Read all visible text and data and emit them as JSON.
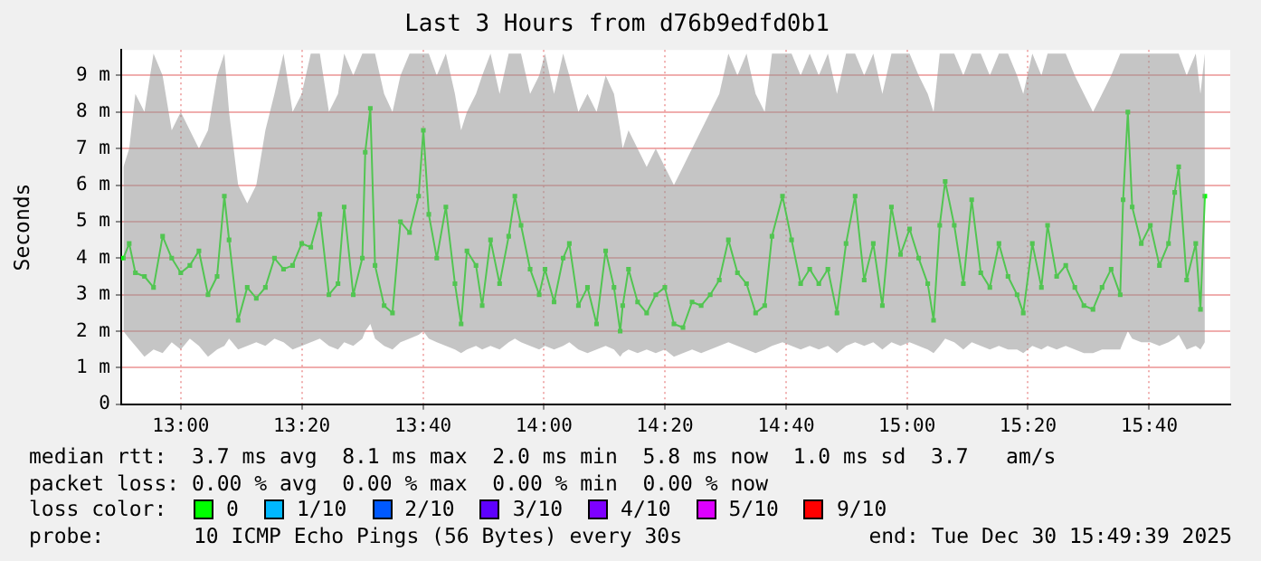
{
  "chart_data": {
    "type": "line",
    "title": "Last 3 Hours from d76b9edfd0b1",
    "ylabel": "Seconds",
    "legend_title": "loss color:",
    "legend": "bottom",
    "grid": true,
    "marker": "square",
    "xlim": [
      12.836,
      15.89
    ],
    "xticks": [
      {
        "value": 13,
        "label": "13:00"
      },
      {
        "value": 13.333,
        "label": "13:20"
      },
      {
        "value": 13.667,
        "label": "13:40"
      },
      {
        "value": 14,
        "label": "14:00"
      },
      {
        "value": 14.333,
        "label": "14:20"
      },
      {
        "value": 14.667,
        "label": "14:40"
      },
      {
        "value": 15,
        "label": "15:00"
      },
      {
        "value": 15.333,
        "label": "15:20"
      },
      {
        "value": 15.667,
        "label": "15:40"
      }
    ],
    "ylim": [
      0,
      9.7
    ],
    "yticks": [
      0,
      {
        "value": 1,
        "label": "1 m"
      },
      {
        "value": 2,
        "label": "2 m"
      },
      {
        "value": 3,
        "label": "3 m"
      },
      {
        "value": 4,
        "label": "4 m"
      },
      {
        "value": 5,
        "label": "5 m"
      },
      {
        "value": 6,
        "label": "6 m"
      },
      {
        "value": 7,
        "label": "7 m"
      },
      {
        "value": 8,
        "label": "8 m"
      },
      {
        "value": 9,
        "label": "9 m"
      }
    ],
    "series": [
      {
        "name": "0",
        "color": "#00ff00",
        "x": [
          12.842,
          12.858,
          12.875,
          12.9,
          12.925,
          12.95,
          12.975,
          13,
          13.025,
          13.05,
          13.075,
          13.1,
          13.12,
          13.133,
          13.158,
          13.183,
          13.208,
          13.233,
          13.258,
          13.283,
          13.308,
          13.333,
          13.358,
          13.383,
          13.408,
          13.433,
          13.45,
          13.475,
          13.5,
          13.508,
          13.522,
          13.535,
          13.56,
          13.583,
          13.605,
          13.63,
          13.655,
          13.668,
          13.683,
          13.705,
          13.73,
          13.755,
          13.772,
          13.788,
          13.813,
          13.83,
          13.853,
          13.878,
          13.903,
          13.92,
          13.937,
          13.962,
          13.987,
          14.003,
          14.028,
          14.053,
          14.07,
          14.095,
          14.12,
          14.145,
          14.17,
          14.193,
          14.21,
          14.217,
          14.233,
          14.258,
          14.283,
          14.308,
          14.333,
          14.358,
          14.383,
          14.408,
          14.433,
          14.458,
          14.483,
          14.508,
          14.533,
          14.558,
          14.583,
          14.608,
          14.628,
          14.657,
          14.682,
          14.707,
          14.732,
          14.757,
          14.782,
          14.807,
          14.832,
          14.857,
          14.882,
          14.907,
          14.932,
          14.957,
          14.982,
          15.007,
          15.032,
          15.057,
          15.073,
          15.09,
          15.105,
          15.13,
          15.155,
          15.178,
          15.203,
          15.228,
          15.253,
          15.278,
          15.303,
          15.32,
          15.345,
          15.37,
          15.387,
          15.412,
          15.437,
          15.462,
          15.487,
          15.512,
          15.537,
          15.562,
          15.587,
          15.595,
          15.608,
          15.62,
          15.645,
          15.67,
          15.695,
          15.72,
          15.737,
          15.748,
          15.77,
          15.795,
          15.808,
          15.82
        ],
        "values": [
          4.0,
          4.4,
          3.6,
          3.5,
          3.2,
          4.6,
          4.0,
          3.6,
          3.8,
          4.2,
          3.0,
          3.5,
          5.7,
          4.5,
          2.3,
          3.2,
          2.9,
          3.2,
          4.0,
          3.7,
          3.8,
          4.4,
          4.3,
          5.2,
          3.0,
          3.3,
          5.4,
          3.0,
          4.0,
          6.9,
          8.1,
          3.8,
          2.7,
          2.5,
          5.0,
          4.7,
          5.7,
          7.5,
          5.2,
          4.0,
          5.4,
          3.3,
          2.2,
          4.2,
          3.8,
          2.7,
          4.5,
          3.3,
          4.6,
          5.7,
          4.9,
          3.7,
          3.0,
          3.7,
          2.8,
          4.0,
          4.4,
          2.7,
          3.2,
          2.2,
          4.2,
          3.2,
          2.0,
          2.7,
          3.7,
          2.8,
          2.5,
          3.0,
          3.2,
          2.2,
          2.1,
          2.8,
          2.7,
          3.0,
          3.4,
          4.5,
          3.6,
          3.3,
          2.5,
          2.7,
          4.6,
          5.7,
          4.5,
          3.3,
          3.7,
          3.3,
          3.7,
          2.5,
          4.4,
          5.7,
          3.4,
          4.4,
          2.7,
          5.4,
          4.1,
          4.8,
          4.0,
          3.3,
          2.3,
          4.9,
          6.1,
          4.9,
          3.3,
          5.6,
          3.6,
          3.2,
          4.4,
          3.5,
          3.0,
          2.5,
          4.4,
          3.2,
          4.9,
          3.5,
          3.8,
          3.2,
          2.7,
          2.6,
          3.2,
          3.7,
          3.0,
          5.6,
          8.0,
          5.4,
          4.4,
          4.9,
          3.8,
          4.4,
          5.8,
          6.5,
          3.4,
          4.4,
          2.6,
          5.7
        ],
        "lower": [
          2.0,
          1.8,
          1.6,
          1.3,
          1.5,
          1.4,
          1.7,
          1.5,
          1.8,
          1.6,
          1.3,
          1.5,
          1.6,
          1.8,
          1.5,
          1.6,
          1.7,
          1.6,
          1.8,
          1.7,
          1.5,
          1.6,
          1.7,
          1.8,
          1.6,
          1.5,
          1.7,
          1.6,
          1.8,
          2.0,
          2.2,
          1.8,
          1.6,
          1.5,
          1.7,
          1.8,
          1.9,
          2.0,
          1.8,
          1.7,
          1.6,
          1.5,
          1.4,
          1.5,
          1.6,
          1.5,
          1.6,
          1.5,
          1.7,
          1.8,
          1.7,
          1.6,
          1.5,
          1.6,
          1.5,
          1.6,
          1.7,
          1.5,
          1.4,
          1.5,
          1.6,
          1.5,
          1.3,
          1.4,
          1.5,
          1.4,
          1.5,
          1.4,
          1.5,
          1.3,
          1.4,
          1.5,
          1.4,
          1.5,
          1.6,
          1.7,
          1.6,
          1.5,
          1.4,
          1.5,
          1.6,
          1.7,
          1.6,
          1.5,
          1.6,
          1.5,
          1.6,
          1.4,
          1.6,
          1.7,
          1.6,
          1.7,
          1.5,
          1.7,
          1.6,
          1.7,
          1.6,
          1.5,
          1.4,
          1.6,
          1.8,
          1.7,
          1.5,
          1.7,
          1.6,
          1.5,
          1.6,
          1.5,
          1.5,
          1.4,
          1.6,
          1.5,
          1.6,
          1.5,
          1.6,
          1.5,
          1.4,
          1.4,
          1.5,
          1.5,
          1.5,
          1.7,
          2.0,
          1.8,
          1.7,
          1.7,
          1.6,
          1.7,
          1.8,
          1.9,
          1.5,
          1.6,
          1.5,
          1.7
        ],
        "upper": [
          6.5,
          7.0,
          8.5,
          8.0,
          9.6,
          9.0,
          7.5,
          8.0,
          7.5,
          7.0,
          7.5,
          9.0,
          9.6,
          8.0,
          6.0,
          5.5,
          6.0,
          7.5,
          8.5,
          9.6,
          8.0,
          8.5,
          9.6,
          9.6,
          8.0,
          8.5,
          9.6,
          9.0,
          9.6,
          9.6,
          9.6,
          9.6,
          8.5,
          8.0,
          9.0,
          9.6,
          9.6,
          9.6,
          9.6,
          9.0,
          9.6,
          8.5,
          7.5,
          8.0,
          8.5,
          9.0,
          9.6,
          8.5,
          9.6,
          9.6,
          9.6,
          8.5,
          9.0,
          9.6,
          8.5,
          9.6,
          9.0,
          8.0,
          8.5,
          8.0,
          9.0,
          8.5,
          7.5,
          7.0,
          7.5,
          7.0,
          6.5,
          7.0,
          6.5,
          6.0,
          6.5,
          7.0,
          7.5,
          8.0,
          8.5,
          9.6,
          9.0,
          9.6,
          8.5,
          8.0,
          9.6,
          9.6,
          9.6,
          9.0,
          9.6,
          9.0,
          9.6,
          8.5,
          9.6,
          9.6,
          9.0,
          9.6,
          8.5,
          9.6,
          9.6,
          9.6,
          9.0,
          8.5,
          8.0,
          9.6,
          9.6,
          9.6,
          9.0,
          9.6,
          9.6,
          9.0,
          9.6,
          9.6,
          9.0,
          8.5,
          9.6,
          9.0,
          9.6,
          9.6,
          9.6,
          9.0,
          8.5,
          8.0,
          8.5,
          9.0,
          9.6,
          9.6,
          9.6,
          9.6,
          9.6,
          9.6,
          9.6,
          9.6,
          9.6,
          9.6,
          9.0,
          9.6,
          8.5,
          9.6
        ]
      },
      {
        "name": "1/10",
        "color": "#00b8ff"
      },
      {
        "name": "2/10",
        "color": "#0059ff"
      },
      {
        "name": "3/10",
        "color": "#5e00ff"
      },
      {
        "name": "4/10",
        "color": "#7e00ff"
      },
      {
        "name": "5/10",
        "color": "#dd00ff"
      },
      {
        "name": "9/10",
        "color": "#ff0000"
      }
    ],
    "annotations": [
      "median rtt:  3.7 ms avg  8.1 ms max  2.0 ms min  5.8 ms now  1.0 ms sd  3.7   am/s",
      "packet loss: 0.00 % avg  0.00 % max  0.00 % min  0.00 % now",
      "probe:",
      "10 ICMP Echo Pings (56 Bytes) every 30s",
      "end: Tue Dec 30 15:49:39 2025"
    ]
  }
}
